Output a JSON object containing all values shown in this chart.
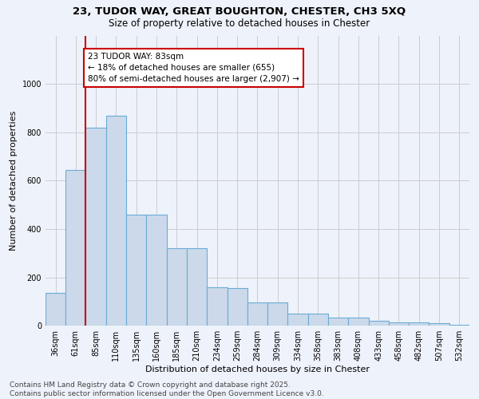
{
  "title_line1": "23, TUDOR WAY, GREAT BOUGHTON, CHESTER, CH3 5XQ",
  "title_line2": "Size of property relative to detached houses in Chester",
  "xlabel": "Distribution of detached houses by size in Chester",
  "ylabel": "Number of detached properties",
  "categories": [
    "36sqm",
    "61sqm",
    "85sqm",
    "110sqm",
    "135sqm",
    "160sqm",
    "185sqm",
    "210sqm",
    "234sqm",
    "259sqm",
    "284sqm",
    "309sqm",
    "334sqm",
    "358sqm",
    "383sqm",
    "408sqm",
    "433sqm",
    "458sqm",
    "482sqm",
    "507sqm",
    "532sqm"
  ],
  "values": [
    135,
    645,
    820,
    870,
    460,
    460,
    320,
    320,
    160,
    155,
    95,
    95,
    50,
    50,
    35,
    35,
    20,
    15,
    15,
    10,
    5
  ],
  "bar_color": "#ccd9ea",
  "bar_edge_color": "#6aacd6",
  "grid_color": "#cccccc",
  "background_color": "#eef2fa",
  "vline_color": "#cc0000",
  "annotation_text": "23 TUDOR WAY: 83sqm\n← 18% of detached houses are smaller (655)\n80% of semi-detached houses are larger (2,907) →",
  "annotation_box_color": "#ffffff",
  "annotation_box_edge": "#cc0000",
  "ylim": [
    0,
    1200
  ],
  "yticks": [
    0,
    200,
    400,
    600,
    800,
    1000
  ],
  "footnote": "Contains HM Land Registry data © Crown copyright and database right 2025.\nContains public sector information licensed under the Open Government Licence v3.0.",
  "title_fontsize": 9.5,
  "subtitle_fontsize": 8.5,
  "axis_label_fontsize": 8,
  "tick_fontsize": 7,
  "annotation_fontsize": 7.5,
  "footnote_fontsize": 6.5
}
